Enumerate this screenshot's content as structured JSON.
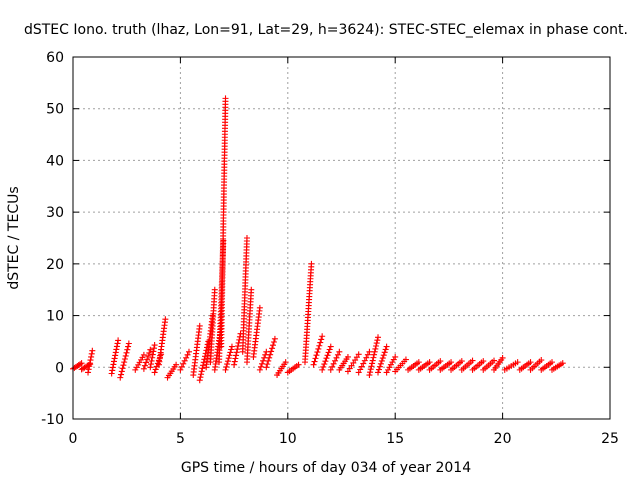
{
  "chart_data": {
    "type": "scatter",
    "title": "dSTEC Iono. truth (lhaz, Lon=91, Lat=29, h=3624): STEC-STEC_elemax in phase cont.",
    "xlabel": "GPS time / hours of day 034 of year 2014",
    "ylabel": "dSTEC  / TECUs",
    "xlim": [
      0,
      25
    ],
    "ylim": [
      -10,
      60
    ],
    "xticks": [
      0,
      5,
      10,
      15,
      20,
      25
    ],
    "yticks": [
      -10,
      0,
      10,
      20,
      30,
      40,
      50,
      60
    ],
    "grid": true,
    "marker": "+",
    "color": "#ff0000",
    "series": [
      {
        "name": "dSTEC",
        "arcs": [
          {
            "x": [
              0.0,
              0.4
            ],
            "y": [
              -0.3,
              0.8
            ]
          },
          {
            "x": [
              0.4,
              0.8
            ],
            "y": [
              -0.4,
              0.6
            ]
          },
          {
            "x": [
              0.7,
              0.9
            ],
            "y": [
              -1.0,
              3.2
            ]
          },
          {
            "x": [
              1.8,
              2.1
            ],
            "y": [
              -1.2,
              5.2
            ]
          },
          {
            "x": [
              2.2,
              2.6
            ],
            "y": [
              -2.0,
              4.6
            ]
          },
          {
            "x": [
              2.9,
              3.3
            ],
            "y": [
              -0.5,
              2.4
            ]
          },
          {
            "x": [
              3.3,
              3.6
            ],
            "y": [
              -0.3,
              3.4
            ]
          },
          {
            "x": [
              3.6,
              3.8
            ],
            "y": [
              0.0,
              4.3
            ]
          },
          {
            "x": [
              3.8,
              4.1
            ],
            "y": [
              -1.0,
              2.5
            ]
          },
          {
            "x": [
              4.0,
              4.3
            ],
            "y": [
              0.5,
              9.3
            ]
          },
          {
            "x": [
              4.4,
              4.8
            ],
            "y": [
              -2.0,
              0.5
            ]
          },
          {
            "x": [
              5.0,
              5.4
            ],
            "y": [
              -0.5,
              3.0
            ]
          },
          {
            "x": [
              5.6,
              5.9
            ],
            "y": [
              -1.5,
              8.0
            ]
          },
          {
            "x": [
              5.9,
              6.3
            ],
            "y": [
              -2.5,
              5.0
            ]
          },
          {
            "x": [
              6.2,
              6.5
            ],
            "y": [
              0.0,
              10.0
            ]
          },
          {
            "x": [
              6.4,
              6.6
            ],
            "y": [
              1.0,
              15.0
            ]
          },
          {
            "x": [
              6.6,
              6.9
            ],
            "y": [
              -0.5,
              8.0
            ]
          },
          {
            "x": [
              6.8,
              7.0
            ],
            "y": [
              1.0,
              24.5
            ]
          },
          {
            "x": [
              6.9,
              7.1
            ],
            "y": [
              4.0,
              52.0
            ]
          },
          {
            "x": [
              7.1,
              7.4
            ],
            "y": [
              -0.5,
              4.0
            ]
          },
          {
            "x": [
              7.5,
              7.8
            ],
            "y": [
              0.5,
              6.5
            ]
          },
          {
            "x": [
              7.9,
              8.1
            ],
            "y": [
              3.0,
              25.0
            ]
          },
          {
            "x": [
              8.1,
              8.3
            ],
            "y": [
              1.0,
              15.0
            ]
          },
          {
            "x": [
              8.4,
              8.7
            ],
            "y": [
              2.0,
              11.5
            ]
          },
          {
            "x": [
              8.7,
              9.0
            ],
            "y": [
              -0.5,
              3.0
            ]
          },
          {
            "x": [
              9.0,
              9.4
            ],
            "y": [
              0.0,
              5.5
            ]
          },
          {
            "x": [
              9.5,
              9.9
            ],
            "y": [
              -1.5,
              1.0
            ]
          },
          {
            "x": [
              10.0,
              10.5
            ],
            "y": [
              -1.0,
              0.5
            ]
          },
          {
            "x": [
              10.8,
              11.1
            ],
            "y": [
              1.0,
              20.0
            ]
          },
          {
            "x": [
              11.2,
              11.6
            ],
            "y": [
              0.5,
              6.0
            ]
          },
          {
            "x": [
              11.6,
              12.0
            ],
            "y": [
              -0.5,
              4.0
            ]
          },
          {
            "x": [
              12.0,
              12.4
            ],
            "y": [
              -0.5,
              3.0
            ]
          },
          {
            "x": [
              12.4,
              12.8
            ],
            "y": [
              -0.5,
              2.0
            ]
          },
          {
            "x": [
              12.8,
              13.3
            ],
            "y": [
              -0.8,
              2.5
            ]
          },
          {
            "x": [
              13.3,
              13.8
            ],
            "y": [
              -1.0,
              3.0
            ]
          },
          {
            "x": [
              13.8,
              14.2
            ],
            "y": [
              -1.5,
              5.8
            ]
          },
          {
            "x": [
              14.2,
              14.6
            ],
            "y": [
              -1.0,
              4.0
            ]
          },
          {
            "x": [
              14.6,
              15.0
            ],
            "y": [
              -1.0,
              2.0
            ]
          },
          {
            "x": [
              15.0,
              15.5
            ],
            "y": [
              -0.8,
              1.5
            ]
          },
          {
            "x": [
              15.6,
              16.1
            ],
            "y": [
              -0.5,
              1.0
            ]
          },
          {
            "x": [
              16.1,
              16.6
            ],
            "y": [
              -0.5,
              1.0
            ]
          },
          {
            "x": [
              16.6,
              17.1
            ],
            "y": [
              -0.5,
              1.2
            ]
          },
          {
            "x": [
              17.1,
              17.6
            ],
            "y": [
              -0.5,
              1.0
            ]
          },
          {
            "x": [
              17.6,
              18.1
            ],
            "y": [
              -0.5,
              1.2
            ]
          },
          {
            "x": [
              18.1,
              18.6
            ],
            "y": [
              -0.5,
              1.3
            ]
          },
          {
            "x": [
              18.6,
              19.1
            ],
            "y": [
              -0.5,
              1.2
            ]
          },
          {
            "x": [
              19.1,
              19.6
            ],
            "y": [
              -0.5,
              1.3
            ]
          },
          {
            "x": [
              19.6,
              20.0
            ],
            "y": [
              -0.5,
              1.8
            ]
          },
          {
            "x": [
              20.1,
              20.7
            ],
            "y": [
              -0.5,
              1.0
            ]
          },
          {
            "x": [
              20.8,
              21.3
            ],
            "y": [
              -0.5,
              1.0
            ]
          },
          {
            "x": [
              21.3,
              21.8
            ],
            "y": [
              -0.5,
              1.4
            ]
          },
          {
            "x": [
              21.8,
              22.3
            ],
            "y": [
              -0.5,
              1.0
            ]
          },
          {
            "x": [
              22.3,
              22.8
            ],
            "y": [
              -0.5,
              0.8
            ]
          }
        ]
      }
    ]
  }
}
